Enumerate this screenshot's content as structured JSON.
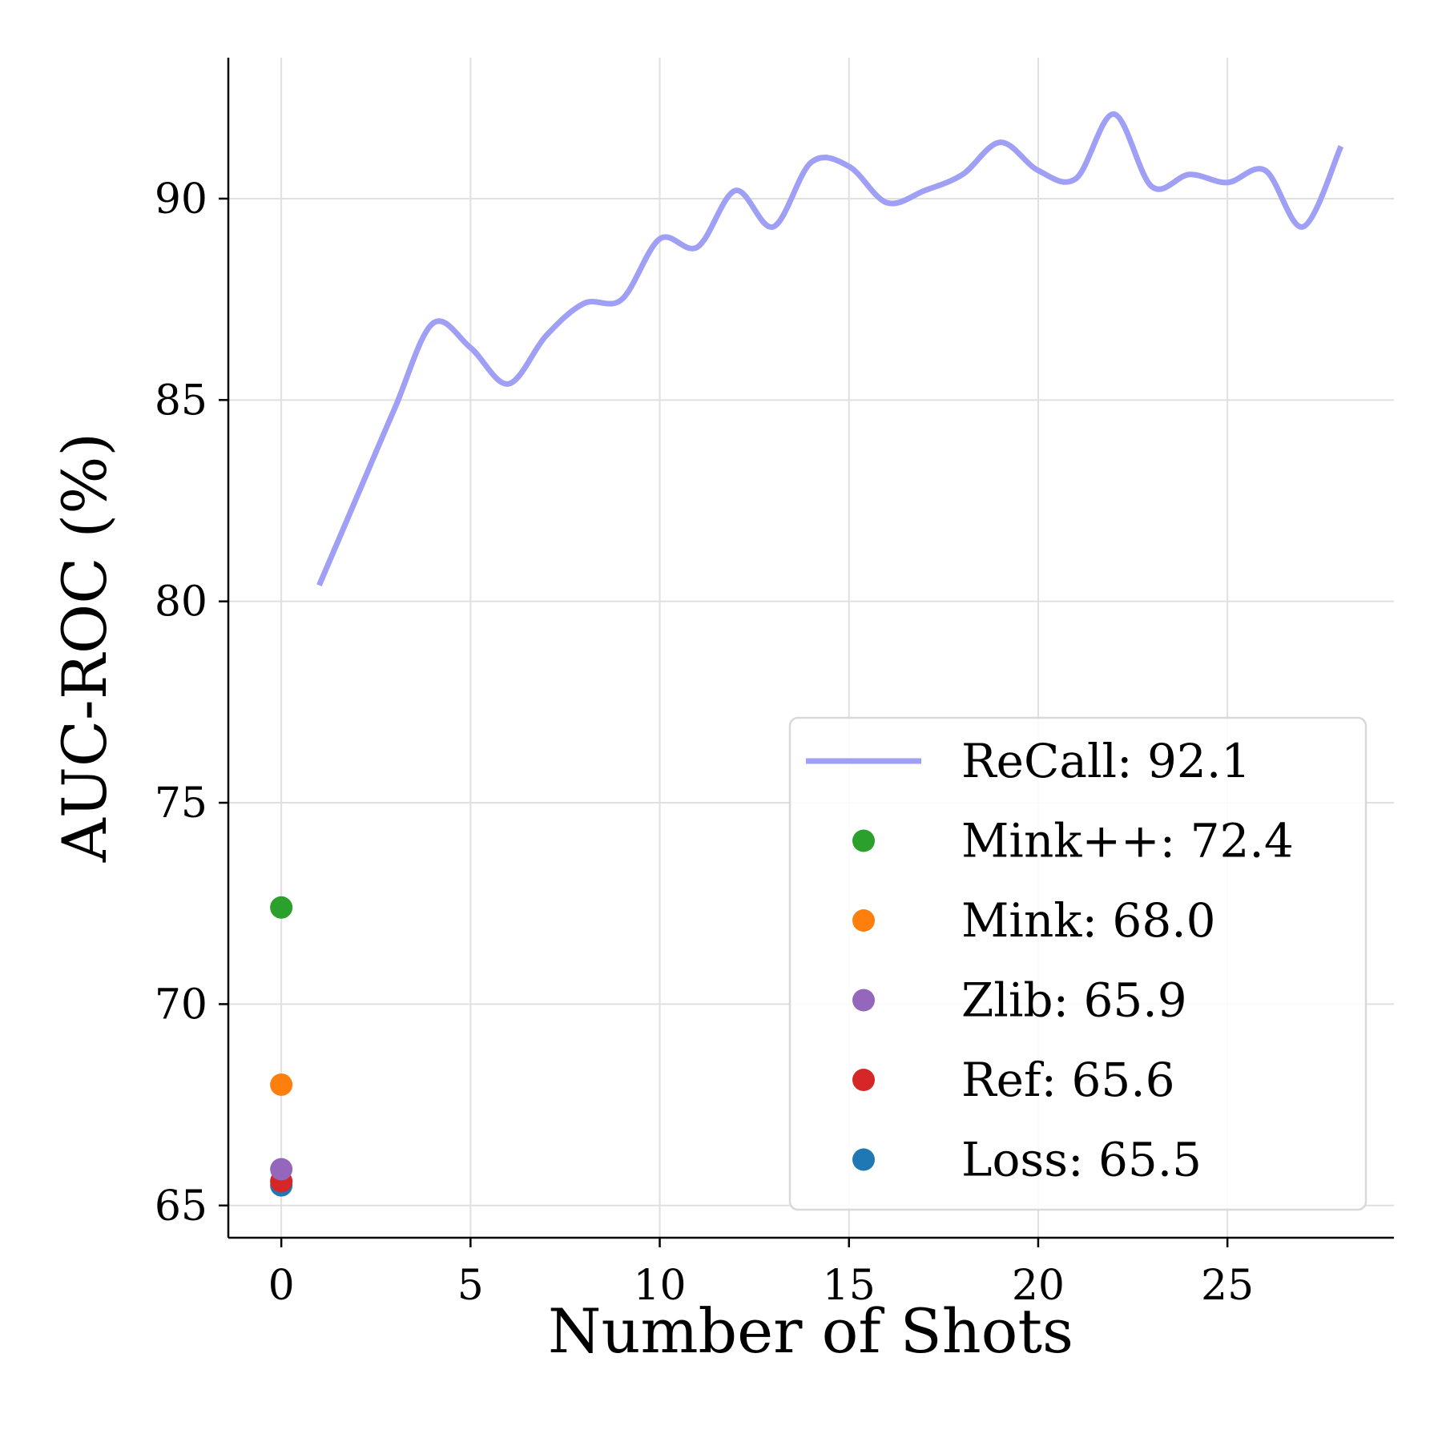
{
  "chart_data": {
    "type": "line",
    "xlabel": "Number of Shots",
    "ylabel": "AUC-ROC (%)",
    "xlim": [
      -1.4,
      29.4
    ],
    "ylim": [
      64.2,
      93.5
    ],
    "xticks": [
      0,
      5,
      10,
      15,
      20,
      25
    ],
    "yticks": [
      65,
      70,
      75,
      80,
      85,
      90
    ],
    "grid": true,
    "legend_position": "lower right",
    "series": [
      {
        "name": "ReCall: 92.1",
        "type": "line",
        "color": "#9f9ff5",
        "x": [
          1,
          2,
          3,
          4,
          5,
          6,
          7,
          8,
          9,
          10,
          11,
          12,
          13,
          14,
          15,
          16,
          17,
          18,
          19,
          20,
          21,
          22,
          23,
          24,
          25,
          26,
          27,
          28
        ],
        "y": [
          80.4,
          82.6,
          84.8,
          86.9,
          86.3,
          85.4,
          86.6,
          87.4,
          87.5,
          89.0,
          88.8,
          90.2,
          89.3,
          90.9,
          90.8,
          89.9,
          90.2,
          90.6,
          91.4,
          90.7,
          90.5,
          92.1,
          90.3,
          90.6,
          90.4,
          90.7,
          89.3,
          91.3
        ]
      },
      {
        "name": "Mink++: 72.4",
        "type": "scatter",
        "color": "#2ca02c",
        "x": [
          0
        ],
        "y": [
          72.4
        ]
      },
      {
        "name": "Mink: 68.0",
        "type": "scatter",
        "color": "#ff7f0e",
        "x": [
          0
        ],
        "y": [
          68.0
        ]
      },
      {
        "name": "Zlib: 65.9",
        "type": "scatter",
        "color": "#9467bd",
        "x": [
          0
        ],
        "y": [
          65.9
        ]
      },
      {
        "name": "Ref: 65.6",
        "type": "scatter",
        "color": "#d62728",
        "x": [
          0
        ],
        "y": [
          65.6
        ]
      },
      {
        "name": "Loss: 65.5",
        "type": "scatter",
        "color": "#1f77b4",
        "x": [
          0
        ],
        "y": [
          65.5
        ]
      }
    ]
  }
}
